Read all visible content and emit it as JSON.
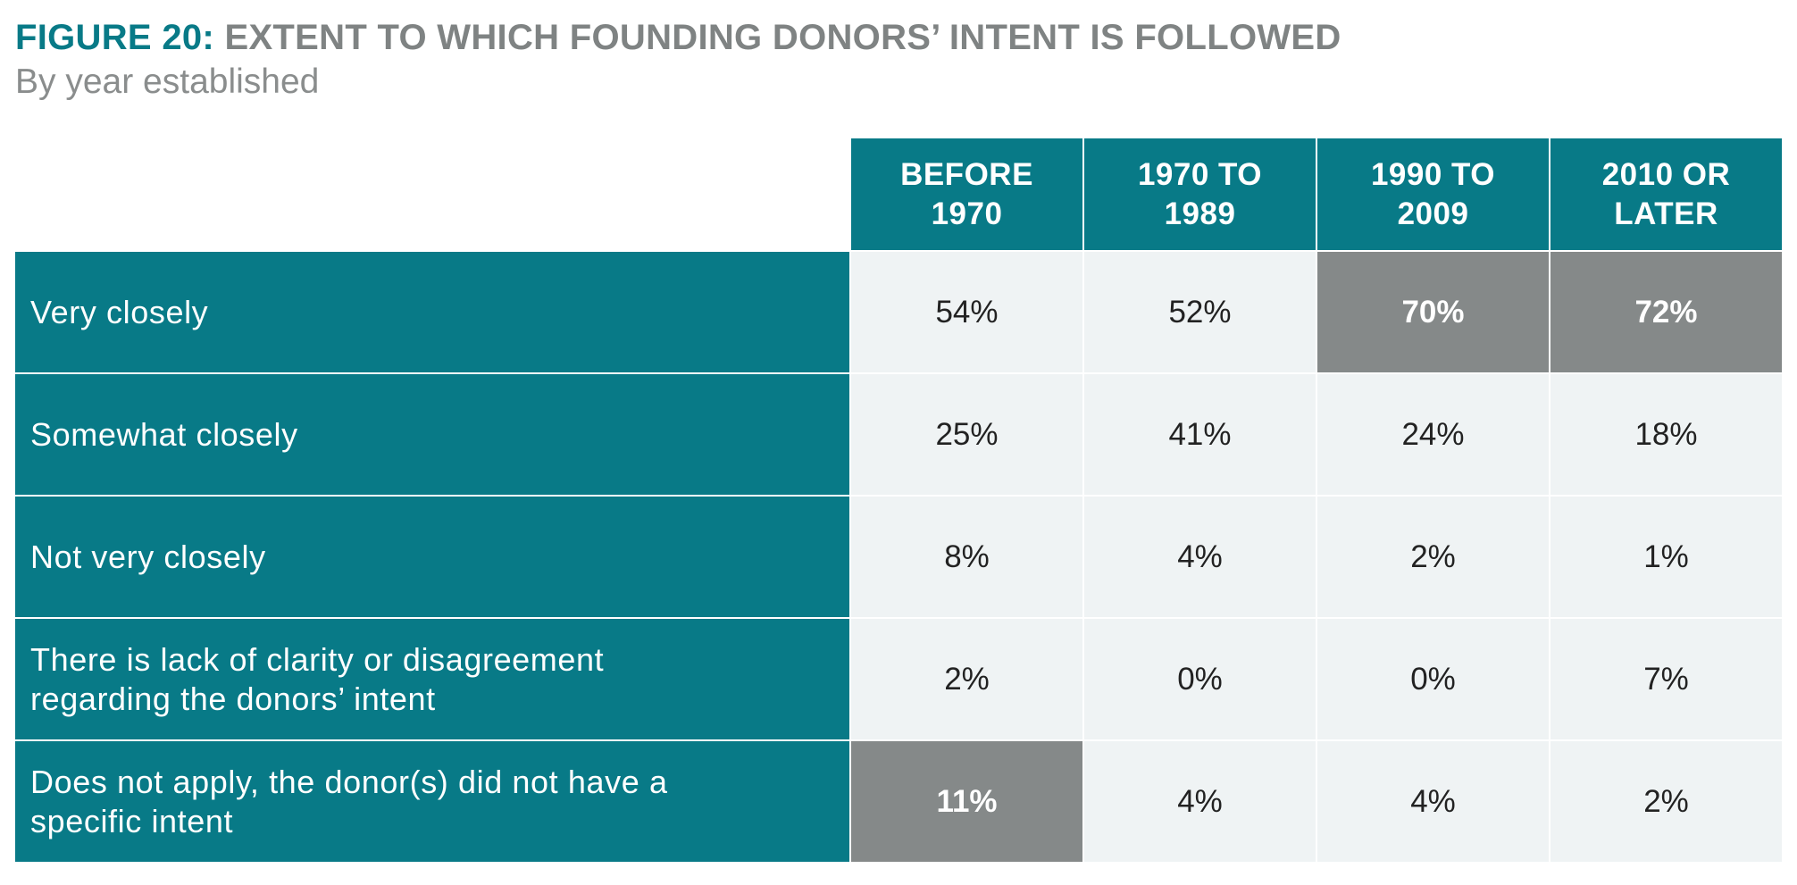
{
  "figure": {
    "label": "FIGURE 20:",
    "title": "EXTENT TO WHICH FOUNDING DONORS’ INTENT IS FOLLOWED",
    "subtitle": "By year established"
  },
  "colors": {
    "header_teal": "#087a87",
    "highlight_gray": "#858989",
    "cell_bg": "#eff3f4",
    "title_gray": "#7f8383"
  },
  "chart_data": {
    "type": "table",
    "title": "EXTENT TO WHICH FOUNDING DONORS’ INTENT IS FOLLOWED",
    "subtitle": "By year established",
    "columns": [
      "BEFORE 1970",
      "1970 TO 1989",
      "1990 TO 2009",
      "2010 OR LATER"
    ],
    "rows": [
      {
        "label": "Very closely",
        "cells": [
          {
            "text": "54%",
            "value": 54,
            "highlight": false
          },
          {
            "text": "52%",
            "value": 52,
            "highlight": false
          },
          {
            "text": "70%",
            "value": 70,
            "highlight": true
          },
          {
            "text": "72%",
            "value": 72,
            "highlight": true
          }
        ]
      },
      {
        "label": "Somewhat closely",
        "cells": [
          {
            "text": "25%",
            "value": 25,
            "highlight": false
          },
          {
            "text": "41%",
            "value": 41,
            "highlight": false
          },
          {
            "text": "24%",
            "value": 24,
            "highlight": false
          },
          {
            "text": "18%",
            "value": 18,
            "highlight": false
          }
        ]
      },
      {
        "label": "Not very closely",
        "cells": [
          {
            "text": "8%",
            "value": 8,
            "highlight": false
          },
          {
            "text": "4%",
            "value": 4,
            "highlight": false
          },
          {
            "text": "2%",
            "value": 2,
            "highlight": false
          },
          {
            "text": "1%",
            "value": 1,
            "highlight": false
          }
        ]
      },
      {
        "label": "There is lack of clarity or disagreement regarding the donors’ intent",
        "cells": [
          {
            "text": "2%",
            "value": 2,
            "highlight": false
          },
          {
            "text": "0%",
            "value": 0,
            "highlight": false
          },
          {
            "text": "0%",
            "value": 0,
            "highlight": false
          },
          {
            "text": "7%",
            "value": 7,
            "highlight": false
          }
        ]
      },
      {
        "label": "Does not apply, the donor(s) did not have a specific intent",
        "cells": [
          {
            "text": "11%",
            "value": 11,
            "highlight": true
          },
          {
            "text": "4%",
            "value": 4,
            "highlight": false
          },
          {
            "text": "4%",
            "value": 4,
            "highlight": false
          },
          {
            "text": "2%",
            "value": 2,
            "highlight": false
          }
        ]
      }
    ]
  }
}
